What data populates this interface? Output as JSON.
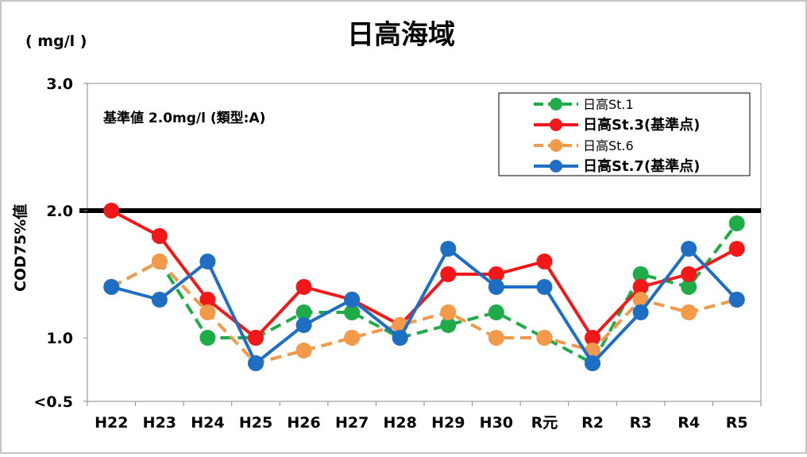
{
  "chart_data": {
    "type": "line",
    "title": "日高海域",
    "unit_label": "( mg/l )",
    "ylabel": "COD75%値",
    "ylim": [
      0.5,
      3.0
    ],
    "y_ticks": [
      {
        "value": 0.5,
        "label": "<0.5"
      },
      {
        "value": 1.0,
        "label": "1.0"
      },
      {
        "value": 2.0,
        "label": "2.0"
      },
      {
        "value": 3.0,
        "label": "3.0"
      }
    ],
    "categories": [
      "H22",
      "H23",
      "H24",
      "H25",
      "H26",
      "H27",
      "H28",
      "H29",
      "H30",
      "R元",
      "R2",
      "R3",
      "R4",
      "R5"
    ],
    "standard": {
      "value": 2.0,
      "label": "基準値  2.0mg/l (類型:A)",
      "color": "#000000"
    },
    "legend_position": "top-right",
    "grid": false,
    "series": [
      {
        "name": "日高St.1",
        "color": "#1fab48",
        "dashed": true,
        "bold": false,
        "values": [
          1.4,
          1.6,
          1.0,
          1.0,
          1.2,
          1.2,
          1.0,
          1.1,
          1.2,
          1.0,
          0.8,
          1.5,
          1.4,
          1.9
        ]
      },
      {
        "name": "日高St.3(基準点)",
        "color": "#f01818",
        "dashed": false,
        "bold": true,
        "values": [
          2.0,
          1.8,
          1.3,
          1.0,
          1.4,
          1.3,
          1.1,
          1.5,
          1.5,
          1.6,
          1.0,
          1.4,
          1.5,
          1.7
        ]
      },
      {
        "name": "日高St.6",
        "color": "#f2994a",
        "dashed": true,
        "bold": false,
        "values": [
          1.4,
          1.6,
          1.2,
          0.8,
          0.9,
          1.0,
          1.1,
          1.2,
          1.0,
          1.0,
          0.9,
          1.3,
          1.2,
          1.3
        ]
      },
      {
        "name": "日高St.7(基準点)",
        "color": "#1e6fc4",
        "dashed": false,
        "bold": true,
        "values": [
          1.4,
          1.3,
          1.6,
          0.8,
          1.1,
          1.3,
          1.0,
          1.7,
          1.4,
          1.4,
          0.8,
          1.2,
          1.7,
          1.3
        ]
      }
    ]
  }
}
